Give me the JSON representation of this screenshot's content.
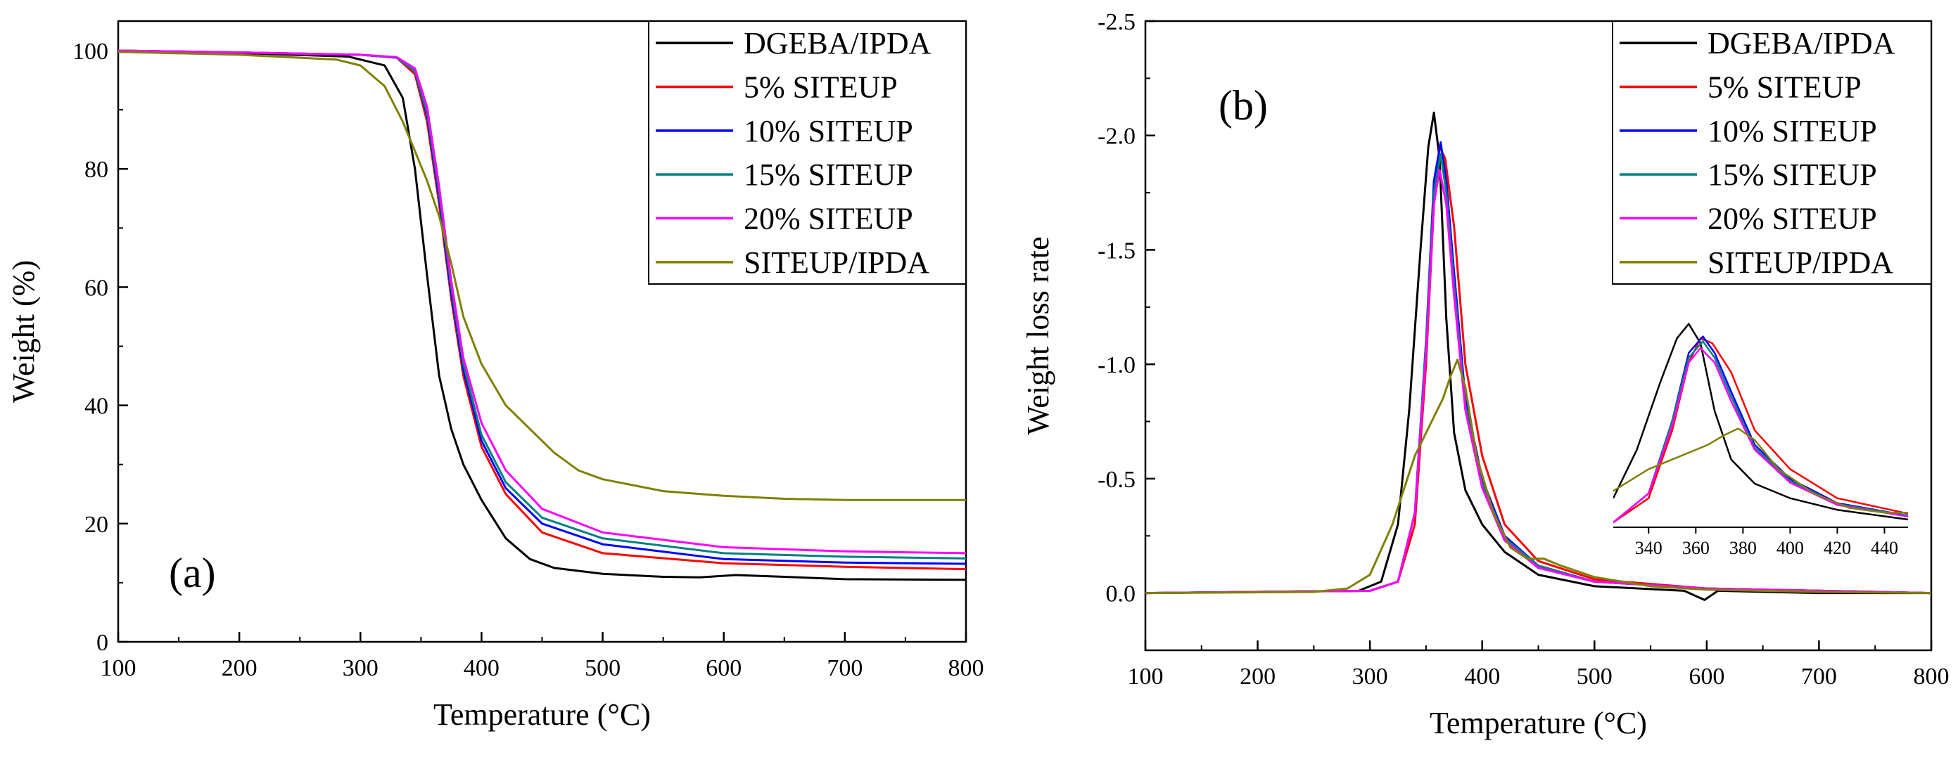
{
  "chart_data": [
    {
      "panel_label": "(a)",
      "type": "line",
      "xlabel": "Temperature (°C)",
      "ylabel": "Weight (%)",
      "xlim": [
        100,
        800
      ],
      "ylim": [
        0,
        105
      ],
      "xticks": [
        100,
        200,
        300,
        400,
        500,
        600,
        700,
        800
      ],
      "yticks": [
        0,
        20,
        40,
        60,
        80,
        100
      ],
      "grid": false,
      "legend_position": "top-right",
      "series": [
        {
          "name": "DGEBA/IPDA",
          "color": "#000000",
          "points": [
            [
              100,
              100
            ],
            [
              200,
              99.6
            ],
            [
              290,
              99
            ],
            [
              320,
              97.5
            ],
            [
              335,
              92
            ],
            [
              345,
              80
            ],
            [
              355,
              62
            ],
            [
              365,
              45
            ],
            [
              375,
              36
            ],
            [
              385,
              30
            ],
            [
              400,
              24
            ],
            [
              420,
              17.5
            ],
            [
              440,
              14
            ],
            [
              460,
              12.5
            ],
            [
              500,
              11.5
            ],
            [
              550,
              11
            ],
            [
              580,
              10.9
            ],
            [
              610,
              11.3
            ],
            [
              650,
              11
            ],
            [
              700,
              10.6
            ],
            [
              800,
              10.5
            ]
          ]
        },
        {
          "name": "5% SITEUP",
          "color": "#ff0000",
          "points": [
            [
              100,
              100
            ],
            [
              200,
              99.7
            ],
            [
              300,
              99.3
            ],
            [
              330,
              98.8
            ],
            [
              345,
              96
            ],
            [
              355,
              88
            ],
            [
              365,
              74
            ],
            [
              375,
              58
            ],
            [
              385,
              45
            ],
            [
              400,
              33
            ],
            [
              420,
              25
            ],
            [
              450,
              18.5
            ],
            [
              500,
              15
            ],
            [
              600,
              13.3
            ],
            [
              700,
              12.7
            ],
            [
              800,
              12.3
            ]
          ]
        },
        {
          "name": "10% SITEUP",
          "color": "#0000ff",
          "points": [
            [
              100,
              100
            ],
            [
              200,
              99.7
            ],
            [
              300,
              99.3
            ],
            [
              330,
              98.8
            ],
            [
              345,
              96.5
            ],
            [
              355,
              89
            ],
            [
              365,
              75
            ],
            [
              375,
              59
            ],
            [
              385,
              46
            ],
            [
              400,
              34
            ],
            [
              420,
              26
            ],
            [
              450,
              20
            ],
            [
              500,
              16.5
            ],
            [
              600,
              14
            ],
            [
              700,
              13.4
            ],
            [
              800,
              13.2
            ]
          ]
        },
        {
          "name": "15% SITEUP",
          "color": "#008080",
          "points": [
            [
              100,
              100
            ],
            [
              200,
              99.7
            ],
            [
              300,
              99.3
            ],
            [
              330,
              98.8
            ],
            [
              345,
              96.5
            ],
            [
              355,
              89.5
            ],
            [
              365,
              76
            ],
            [
              375,
              60
            ],
            [
              385,
              47
            ],
            [
              400,
              35
            ],
            [
              420,
              27
            ],
            [
              450,
              21
            ],
            [
              500,
              17.5
            ],
            [
              600,
              15
            ],
            [
              700,
              14.4
            ],
            [
              800,
              14.1
            ]
          ]
        },
        {
          "name": "20% SITEUP",
          "color": "#ff00ff",
          "points": [
            [
              100,
              100
            ],
            [
              200,
              99.7
            ],
            [
              300,
              99.3
            ],
            [
              330,
              98.9
            ],
            [
              345,
              97
            ],
            [
              355,
              90.5
            ],
            [
              365,
              77
            ],
            [
              375,
              61
            ],
            [
              385,
              48
            ],
            [
              400,
              37
            ],
            [
              420,
              29
            ],
            [
              450,
              22.5
            ],
            [
              500,
              18.5
            ],
            [
              600,
              16
            ],
            [
              700,
              15.3
            ],
            [
              800,
              15
            ]
          ]
        },
        {
          "name": "SITEUP/IPDA",
          "color": "#808000",
          "points": [
            [
              100,
              99.8
            ],
            [
              200,
              99.3
            ],
            [
              280,
              98.5
            ],
            [
              300,
              97.5
            ],
            [
              320,
              94
            ],
            [
              335,
              88
            ],
            [
              345,
              83
            ],
            [
              355,
              78
            ],
            [
              365,
              72
            ],
            [
              375,
              64
            ],
            [
              385,
              55
            ],
            [
              400,
              47
            ],
            [
              420,
              40
            ],
            [
              440,
              36
            ],
            [
              460,
              32
            ],
            [
              480,
              29
            ],
            [
              500,
              27.5
            ],
            [
              550,
              25.5
            ],
            [
              600,
              24.7
            ],
            [
              650,
              24.2
            ],
            [
              700,
              24
            ],
            [
              800,
              24
            ]
          ]
        }
      ]
    },
    {
      "panel_label": "(b)",
      "type": "line",
      "xlabel": "Temperature (°C)",
      "ylabel": "Weight loss rate",
      "xlim": [
        100,
        800
      ],
      "ylim": [
        0.25,
        -2.5
      ],
      "xticks": [
        100,
        200,
        300,
        400,
        500,
        600,
        700,
        800
      ],
      "yticks": [
        0.0,
        -0.5,
        -1.0,
        -1.5,
        -2.0,
        -2.5
      ],
      "ytick_labels": [
        "0.0",
        "-0.5",
        "-1.0",
        "-1.5",
        "-2.0",
        "-2.5"
      ],
      "grid": false,
      "legend_position": "top-right",
      "series": [
        {
          "name": "DGEBA/IPDA",
          "color": "#000000",
          "points": [
            [
              100,
              0
            ],
            [
              290,
              -0.01
            ],
            [
              310,
              -0.05
            ],
            [
              325,
              -0.3
            ],
            [
              335,
              -0.8
            ],
            [
              345,
              -1.5
            ],
            [
              352,
              -1.95
            ],
            [
              357,
              -2.1
            ],
            [
              362,
              -1.9
            ],
            [
              368,
              -1.2
            ],
            [
              375,
              -0.7
            ],
            [
              385,
              -0.45
            ],
            [
              400,
              -0.3
            ],
            [
              420,
              -0.18
            ],
            [
              450,
              -0.08
            ],
            [
              500,
              -0.03
            ],
            [
              580,
              -0.01
            ],
            [
              598,
              0.03
            ],
            [
              610,
              -0.01
            ],
            [
              700,
              0
            ],
            [
              800,
              0
            ]
          ]
        },
        {
          "name": "5% SITEUP",
          "color": "#ff0000",
          "points": [
            [
              100,
              0
            ],
            [
              300,
              -0.01
            ],
            [
              325,
              -0.05
            ],
            [
              340,
              -0.3
            ],
            [
              350,
              -1.0
            ],
            [
              357,
              -1.7
            ],
            [
              362,
              -1.95
            ],
            [
              367,
              -1.9
            ],
            [
              375,
              -1.6
            ],
            [
              385,
              -1.0
            ],
            [
              400,
              -0.6
            ],
            [
              420,
              -0.3
            ],
            [
              450,
              -0.14
            ],
            [
              500,
              -0.06
            ],
            [
              600,
              -0.02
            ],
            [
              800,
              0
            ]
          ]
        },
        {
          "name": "10% SITEUP",
          "color": "#0000ff",
          "points": [
            [
              100,
              0
            ],
            [
              300,
              -0.01
            ],
            [
              325,
              -0.05
            ],
            [
              340,
              -0.35
            ],
            [
              350,
              -1.1
            ],
            [
              357,
              -1.8
            ],
            [
              363,
              -1.97
            ],
            [
              368,
              -1.8
            ],
            [
              375,
              -1.4
            ],
            [
              385,
              -0.85
            ],
            [
              400,
              -0.5
            ],
            [
              420,
              -0.25
            ],
            [
              450,
              -0.12
            ],
            [
              500,
              -0.05
            ],
            [
              600,
              -0.02
            ],
            [
              800,
              0
            ]
          ]
        },
        {
          "name": "15% SITEUP",
          "color": "#008080",
          "points": [
            [
              100,
              0
            ],
            [
              300,
              -0.01
            ],
            [
              325,
              -0.05
            ],
            [
              340,
              -0.35
            ],
            [
              350,
              -1.1
            ],
            [
              357,
              -1.75
            ],
            [
              363,
              -1.92
            ],
            [
              368,
              -1.75
            ],
            [
              375,
              -1.35
            ],
            [
              385,
              -0.82
            ],
            [
              400,
              -0.48
            ],
            [
              420,
              -0.24
            ],
            [
              450,
              -0.12
            ],
            [
              500,
              -0.05
            ],
            [
              600,
              -0.02
            ],
            [
              800,
              0
            ]
          ]
        },
        {
          "name": "20% SITEUP",
          "color": "#ff00ff",
          "points": [
            [
              100,
              0
            ],
            [
              300,
              -0.01
            ],
            [
              325,
              -0.05
            ],
            [
              340,
              -0.35
            ],
            [
              350,
              -1.05
            ],
            [
              357,
              -1.7
            ],
            [
              362,
              -1.85
            ],
            [
              368,
              -1.7
            ],
            [
              375,
              -1.3
            ],
            [
              385,
              -0.8
            ],
            [
              400,
              -0.46
            ],
            [
              420,
              -0.23
            ],
            [
              450,
              -0.11
            ],
            [
              500,
              -0.05
            ],
            [
              600,
              -0.02
            ],
            [
              800,
              0
            ]
          ]
        },
        {
          "name": "SITEUP/IPDA",
          "color": "#808000",
          "points": [
            [
              100,
              0
            ],
            [
              250,
              -0.005
            ],
            [
              280,
              -0.02
            ],
            [
              300,
              -0.08
            ],
            [
              320,
              -0.3
            ],
            [
              340,
              -0.6
            ],
            [
              355,
              -0.75
            ],
            [
              365,
              -0.85
            ],
            [
              372,
              -0.95
            ],
            [
              378,
              -1.02
            ],
            [
              385,
              -0.9
            ],
            [
              395,
              -0.6
            ],
            [
              410,
              -0.35
            ],
            [
              425,
              -0.2
            ],
            [
              440,
              -0.15
            ],
            [
              455,
              -0.15
            ],
            [
              470,
              -0.12
            ],
            [
              500,
              -0.07
            ],
            [
              550,
              -0.03
            ],
            [
              600,
              -0.015
            ],
            [
              700,
              -0.005
            ],
            [
              800,
              0
            ]
          ]
        }
      ],
      "inset": {
        "xlim": [
          325,
          450
        ],
        "xticks": [
          340,
          360,
          380,
          400,
          420,
          440
        ],
        "note": "zoomed view of the main peak"
      }
    }
  ]
}
